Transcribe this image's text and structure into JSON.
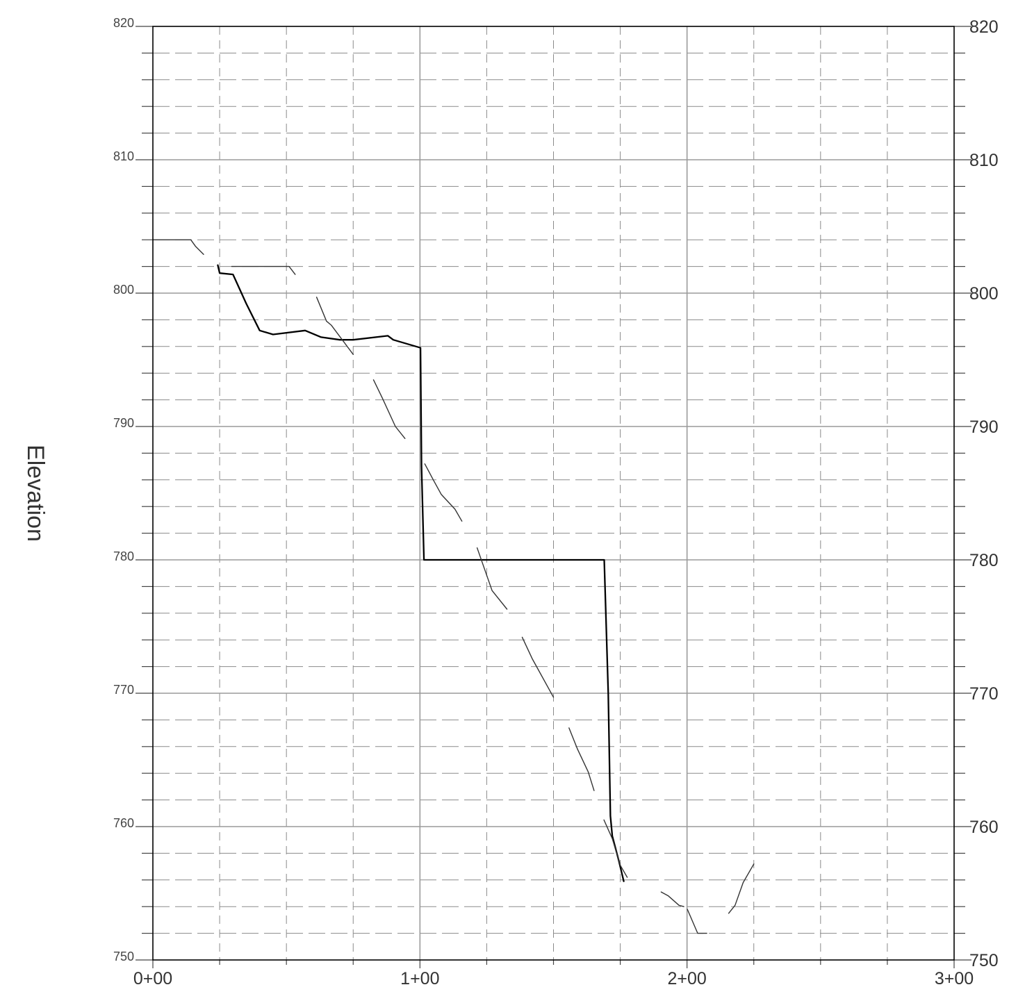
{
  "chart_data": {
    "type": "line",
    "title": "",
    "xlabel": "",
    "ylabel": "Elevation",
    "xlim": [
      0,
      300
    ],
    "ylim": [
      750,
      820
    ],
    "x_tick_values": [
      0,
      100,
      200,
      300
    ],
    "x_tick_labels": [
      "0+00",
      "1+00",
      "2+00",
      "3+00"
    ],
    "y_tick_values": [
      750,
      760,
      770,
      780,
      790,
      800,
      810,
      820
    ],
    "y_tick_labels_left": [
      "750",
      "760",
      "770",
      "780",
      "790",
      "800",
      "810",
      "820"
    ],
    "y_tick_labels_right": [
      "750",
      "760",
      "770",
      "780",
      "790",
      "800",
      "810",
      "820"
    ],
    "grid": true,
    "x_major_step": 100,
    "x_minor_step": 25,
    "y_major_step": 10,
    "y_minor_step": 2,
    "series": [
      {
        "style": "thick",
        "color": "#000000",
        "segments": [
          [
            [
              24.3,
              802.1
            ],
            [
              25,
              801.5
            ],
            [
              30,
              801.4
            ],
            [
              35,
              799.2
            ],
            [
              40,
              797.2
            ],
            [
              45,
              796.9
            ],
            [
              57,
              797.2
            ],
            [
              63,
              796.7
            ],
            [
              70,
              796.5
            ],
            [
              75,
              796.5
            ],
            [
              88,
              796.8
            ],
            [
              90,
              796.5
            ],
            [
              100.2,
              795.9
            ],
            [
              100.6,
              787
            ],
            [
              101.5,
              780
            ],
            [
              169,
              780
            ],
            [
              170.5,
              770
            ],
            [
              171.3,
              760.8
            ],
            [
              172,
              759.3
            ],
            [
              174.5,
              757.4
            ],
            [
              176.3,
              755.9
            ]
          ]
        ]
      },
      {
        "style": "thin",
        "color": "#333333",
        "segments": [
          [
            [
              0,
              804
            ],
            [
              14.2,
              804
            ],
            [
              16,
              803.5
            ],
            [
              19,
              802.9
            ]
          ],
          [
            [
              29.5,
              802
            ],
            [
              51,
              802
            ],
            [
              53.3,
              801.4
            ]
          ],
          [
            [
              61.3,
              799.7
            ],
            [
              65,
              797.9
            ],
            [
              66.8,
              797.6
            ],
            [
              75,
              795.4
            ]
          ],
          [
            [
              82.6,
              793.5
            ],
            [
              86,
              792.1
            ],
            [
              90.8,
              790
            ],
            [
              94.4,
              789.1
            ]
          ],
          [
            [
              101.8,
              787.2
            ],
            [
              105,
              786
            ],
            [
              108,
              784.9
            ],
            [
              113.1,
              783.8
            ],
            [
              115.7,
              782.9
            ]
          ],
          [
            [
              121.4,
              780.9
            ],
            [
              127,
              777.7
            ],
            [
              132.6,
              776.3
            ]
          ],
          [
            [
              138.3,
              774.2
            ],
            [
              142,
              772.6
            ],
            [
              150,
              769.7
            ]
          ],
          [
            [
              155.8,
              767.4
            ],
            [
              159,
              765.8
            ],
            [
              163,
              764.1
            ],
            [
              165.2,
              762.7
            ]
          ],
          [
            [
              168.9,
              760.5
            ],
            [
              172,
              759.1
            ],
            [
              175,
              757.1
            ],
            [
              177.6,
              756.2
            ]
          ],
          [
            [
              190.3,
              755.1
            ],
            [
              193,
              754.8
            ],
            [
              197,
              754.1
            ],
            [
              198.8,
              754
            ]
          ],
          [
            [
              200.1,
              753.8
            ],
            [
              204,
              752
            ],
            [
              207.4,
              752
            ]
          ],
          [
            [
              215.6,
              753.5
            ],
            [
              218,
              754.1
            ],
            [
              221,
              755.8
            ],
            [
              225,
              757.2
            ]
          ]
        ]
      }
    ]
  }
}
